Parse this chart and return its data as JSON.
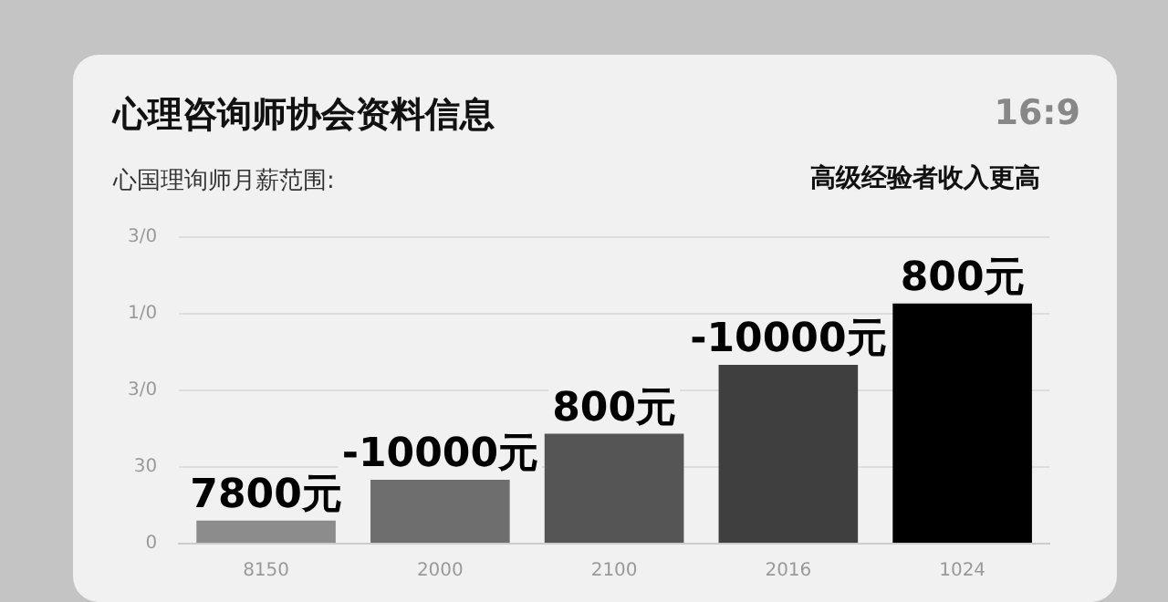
{
  "chart_data": {
    "type": "bar",
    "title": "心理咨询师协会资料信息",
    "subtitle": "心国理询师月薪范围:",
    "annotations": [
      "16:9",
      "高级经验者收入更高",
      {
        "text": "7800元",
        "x": "8150",
        "y": 9
      },
      {
        "text": "-10000元",
        "x": "2000",
        "y": 25
      },
      {
        "text": "800元",
        "x": "2100",
        "y": 43
      },
      {
        "text": "-10000元",
        "x": "2016",
        "y": 70
      },
      {
        "text": "800元",
        "x": "1024",
        "y": 94
      }
    ],
    "categories": [
      "8150",
      "2000",
      "2100",
      "2016",
      "1024"
    ],
    "values": [
      9,
      25,
      43,
      70,
      94
    ],
    "colors": [
      "#8c8c8c",
      "#6e6e6e",
      "#555555",
      "#3f3f3f",
      "#000000"
    ],
    "ylim": [
      0,
      120
    ],
    "yticks": [
      0,
      30,
      {
        "value": 60,
        "label": "3/0"
      },
      {
        "value": 90,
        "label": "1/0"
      },
      {
        "value": 120,
        "label": "3/0"
      }
    ],
    "grid": "y"
  }
}
